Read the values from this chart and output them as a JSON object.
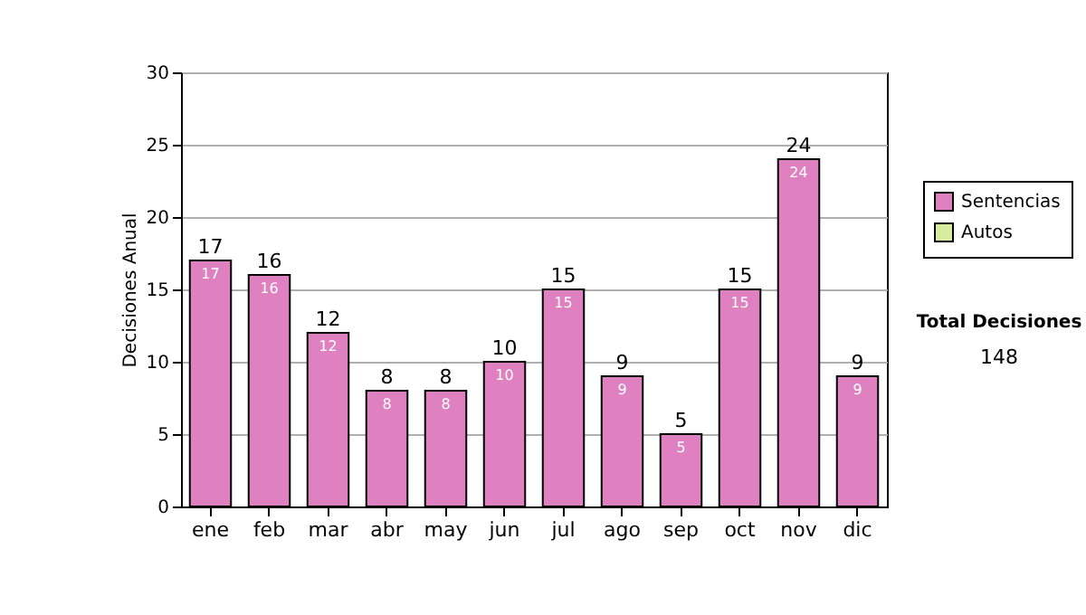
{
  "chart_data": {
    "type": "bar",
    "stacked": true,
    "ylabel": "Decisiones Anual",
    "categories": [
      "ene",
      "feb",
      "mar",
      "abr",
      "may",
      "jun",
      "jul",
      "ago",
      "sep",
      "oct",
      "nov",
      "dic"
    ],
    "series": [
      {
        "name": "Sentencias",
        "color": "#df80c0",
        "values": [
          17,
          16,
          12,
          8,
          8,
          10,
          15,
          9,
          5,
          15,
          24,
          9
        ],
        "value_labels": [
          "17",
          "16",
          "12",
          "8",
          "8",
          "10",
          "15",
          "9",
          "5",
          "15",
          "24",
          "9"
        ]
      },
      {
        "name": "Autos",
        "color": "#d8eca0",
        "values": [
          0,
          0,
          0,
          0,
          0,
          0,
          0,
          0,
          0,
          0,
          0,
          0
        ]
      }
    ],
    "totals": [
      "17",
      "16",
      "12",
      "8",
      "8",
      "10",
      "15",
      "9",
      "5",
      "15",
      "24",
      "9"
    ],
    "ylim": [
      0,
      30
    ],
    "yticks": [
      0,
      5,
      10,
      15,
      20,
      25,
      30
    ],
    "grid": "y",
    "legend": "right",
    "annotations": [
      "Total Decisiones",
      "148"
    ]
  }
}
